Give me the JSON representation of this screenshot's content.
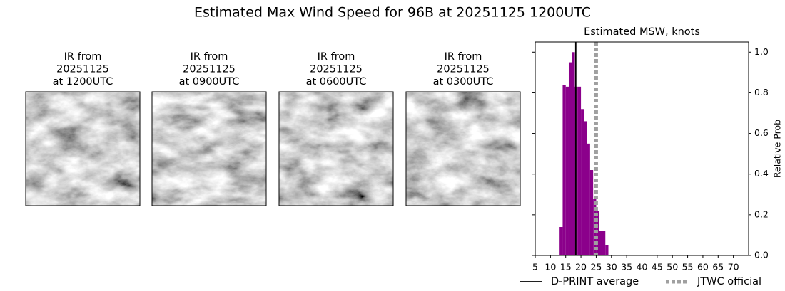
{
  "title": "Estimated Max Wind Speed for 96B at 20251125 1200UTC",
  "panels": [
    {
      "lines": [
        "IR from",
        "20251125",
        "at 1200UTC"
      ]
    },
    {
      "lines": [
        "IR from",
        "20251125",
        "at 0900UTC"
      ]
    },
    {
      "lines": [
        "IR from",
        "20251125",
        "at 0600UTC"
      ]
    },
    {
      "lines": [
        "IR from",
        "20251125",
        "at 0300UTC"
      ]
    }
  ],
  "chart_data": {
    "type": "histogram",
    "title": "Estimated MSW, knots",
    "y_label": "Relative Prob",
    "color": "#8b008b",
    "bins": [
      13,
      14,
      15,
      16,
      17,
      18,
      19,
      20,
      21,
      22,
      23,
      24,
      25,
      26,
      27,
      28,
      29,
      30,
      31,
      32,
      33,
      34,
      35,
      36,
      37,
      38,
      39,
      40,
      41,
      42,
      43,
      44,
      45,
      46,
      47,
      48,
      49,
      50,
      51,
      52,
      53,
      54,
      55,
      56,
      57,
      58,
      59,
      60,
      61,
      62,
      63,
      64,
      65,
      66,
      67,
      68,
      69,
      70,
      71
    ],
    "counts": [
      0.14,
      0.84,
      0.83,
      0.95,
      1.0,
      0.83,
      0.83,
      0.72,
      0.66,
      0.55,
      0.42,
      0.28,
      0.22,
      0.12,
      0.12,
      0.05,
      0.003,
      0.003,
      0.003,
      0.003,
      0.003,
      0.003,
      0.003,
      0.003,
      0.003,
      0.003,
      0.003,
      0.003,
      0.003,
      0.003,
      0.003,
      0.003,
      0.003,
      0.003,
      0.003,
      0.003,
      0.003,
      0.003,
      0.003,
      0.003,
      0.003,
      0.003,
      0.003,
      0.003,
      0.003,
      0.003,
      0.003,
      0.003,
      0.003,
      0.003,
      0.003,
      0.003,
      0.003,
      0.003,
      0.003,
      0.003,
      0.003,
      0.003
    ],
    "xlim": [
      5,
      75
    ],
    "ylim": [
      0,
      1.05
    ],
    "xticks": [
      5,
      10,
      15,
      20,
      25,
      30,
      35,
      40,
      45,
      50,
      55,
      60,
      65,
      70
    ],
    "yticks": [
      {
        "value": 0,
        "label": "0.0"
      },
      {
        "value": 0.2,
        "label": "0.2"
      },
      {
        "value": 0.4,
        "label": "0.4"
      },
      {
        "value": 0.6,
        "label": "0.6"
      },
      {
        "value": 0.8,
        "label": "0.8"
      },
      {
        "value": 1.0,
        "label": "1.0"
      }
    ],
    "lines": [
      {
        "name": "D-PRINT average",
        "x": 18.3,
        "color": "#000000",
        "style": "solid"
      },
      {
        "name": "JTWC official",
        "x": 25,
        "color": "#a0a0a0",
        "style": "dotted"
      }
    ]
  }
}
